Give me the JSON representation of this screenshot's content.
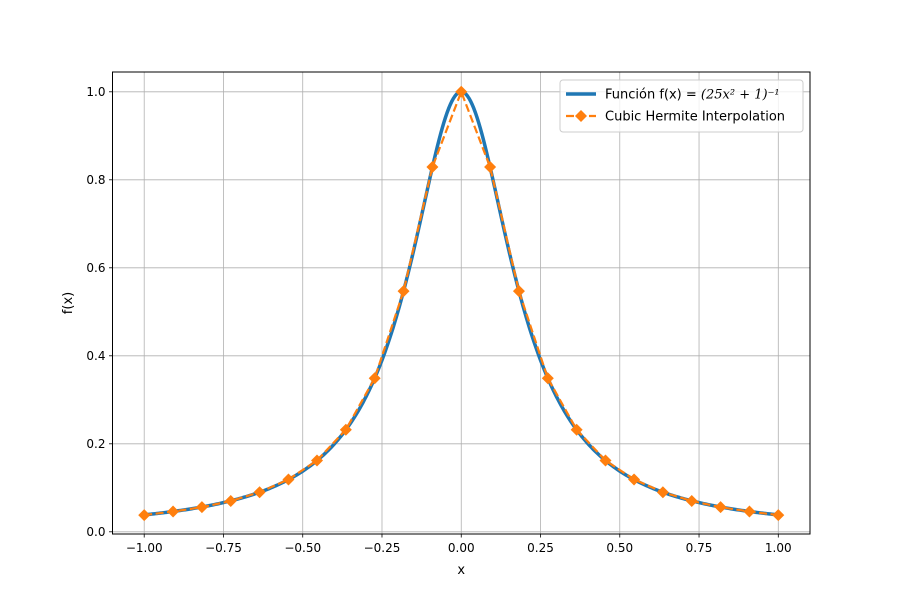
{
  "chart_data": {
    "type": "line",
    "title": "",
    "xlabel": "x",
    "ylabel": "f(x)",
    "xlim": [
      -1.1,
      1.1
    ],
    "ylim": [
      -0.005,
      1.045
    ],
    "grid": true,
    "legend_position": "top-right",
    "x_ticks": [
      -1.0,
      -0.75,
      -0.5,
      -0.25,
      0.0,
      0.25,
      0.5,
      0.75,
      1.0
    ],
    "x_tick_labels": [
      "−1.00",
      "−0.75",
      "−0.50",
      "−0.25",
      "0.00",
      "0.25",
      "0.50",
      "0.75",
      "1.00"
    ],
    "y_ticks": [
      0.0,
      0.2,
      0.4,
      0.6,
      0.8,
      1.0
    ],
    "y_tick_labels": [
      "0.0",
      "0.2",
      "0.4",
      "0.6",
      "0.8",
      "1.0"
    ],
    "series": [
      {
        "name": "Función f(x) = (25x²+1)⁻¹",
        "legend_prefix": "Función f(x) = ",
        "legend_math": "(25x² + 1)⁻¹",
        "color": "#1f77b4",
        "style": "solid",
        "function": "1/(25*x^2+1)",
        "domain": [
          -1.0,
          1.0
        ]
      },
      {
        "name": "Cubic Hermite Interpolation",
        "color": "#ff7f0e",
        "style": "dashed",
        "marker": "diamond",
        "x": [
          -1.0,
          -0.909,
          -0.818,
          -0.727,
          -0.636,
          -0.545,
          -0.455,
          -0.364,
          -0.273,
          -0.182,
          -0.091,
          0.0,
          0.091,
          0.182,
          0.273,
          0.364,
          0.455,
          0.545,
          0.636,
          0.727,
          0.818,
          0.909,
          1.0
        ],
        "y": [
          0.038,
          0.046,
          0.056,
          0.07,
          0.09,
          0.119,
          0.162,
          0.232,
          0.349,
          0.547,
          0.829,
          1.0,
          0.829,
          0.547,
          0.349,
          0.232,
          0.162,
          0.119,
          0.09,
          0.07,
          0.056,
          0.046,
          0.038
        ]
      }
    ]
  }
}
